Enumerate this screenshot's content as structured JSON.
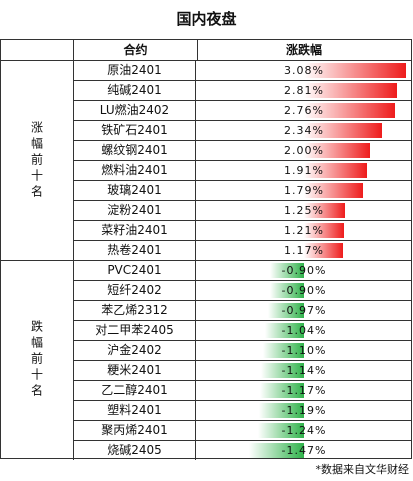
{
  "title": "国内夜盘",
  "header": {
    "name_col": "合约",
    "change_col": "涨跌幅"
  },
  "groups": [
    {
      "label": "涨幅前十名",
      "rows": [
        {
          "name": "原油2401",
          "change": "3.08%",
          "value": 3.08
        },
        {
          "name": "纯碱2401",
          "change": "2.81%",
          "value": 2.81
        },
        {
          "name": "LU燃油2402",
          "change": "2.76%",
          "value": 2.76
        },
        {
          "name": "铁矿石2401",
          "change": "2.34%",
          "value": 2.34
        },
        {
          "name": "螺纹钢2401",
          "change": "2.00%",
          "value": 2.0
        },
        {
          "name": "燃料油2401",
          "change": "1.91%",
          "value": 1.91
        },
        {
          "name": "玻璃2401",
          "change": "1.79%",
          "value": 1.79
        },
        {
          "name": "淀粉2401",
          "change": "1.25%",
          "value": 1.25
        },
        {
          "name": "菜籽油2401",
          "change": "1.21%",
          "value": 1.21
        },
        {
          "name": "热卷2401",
          "change": "1.17%",
          "value": 1.17
        }
      ]
    },
    {
      "label": "跌幅前十名",
      "rows": [
        {
          "name": "PVC2401",
          "change": "-0.90%",
          "value": -0.9
        },
        {
          "name": "短纤2402",
          "change": "-0.90%",
          "value": -0.9
        },
        {
          "name": "苯乙烯2312",
          "change": "-0.97%",
          "value": -0.97
        },
        {
          "name": "对二甲苯2405",
          "change": "-1.04%",
          "value": -1.04
        },
        {
          "name": "沪金2402",
          "change": "-1.10%",
          "value": -1.1
        },
        {
          "name": "粳米2401",
          "change": "-1.14%",
          "value": -1.14
        },
        {
          "name": "乙二醇2401",
          "change": "-1.17%",
          "value": -1.17
        },
        {
          "name": "塑料2401",
          "change": "-1.19%",
          "value": -1.19
        },
        {
          "name": "聚丙烯2401",
          "change": "-1.24%",
          "value": -1.24
        },
        {
          "name": "烧碱2405",
          "change": "-1.47%",
          "value": -1.47
        }
      ]
    }
  ],
  "footnote": "*数据来自文华财经",
  "colors": {
    "positive": "#ee1c1c",
    "negative": "#2fb24a"
  }
}
